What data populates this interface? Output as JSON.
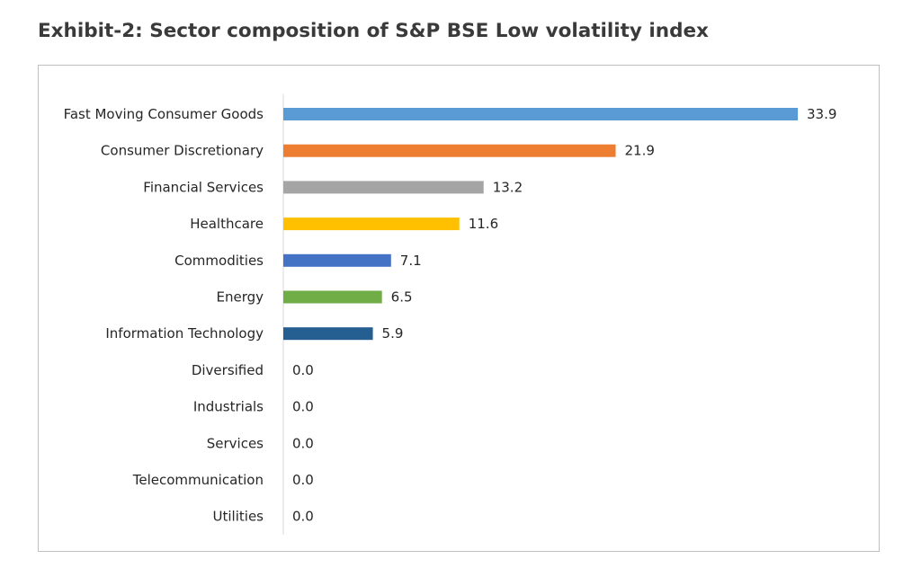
{
  "title": "Exhibit-2: Sector composition of S&P BSE Low volatility index",
  "chart_data": {
    "type": "bar",
    "orientation": "horizontal",
    "title": "",
    "xlabel": "",
    "ylabel": "",
    "categories": [
      "Fast Moving Consumer Goods",
      "Consumer Discretionary",
      "Financial Services",
      "Healthcare",
      "Commodities",
      "Energy",
      "Information Technology",
      "Diversified",
      "Industrials",
      "Services",
      "Telecommunication",
      "Utilities"
    ],
    "values": [
      33.9,
      21.9,
      13.2,
      11.6,
      7.1,
      6.5,
      5.9,
      0.0,
      0.0,
      0.0,
      0.0,
      0.0
    ],
    "value_labels": [
      "33.9",
      "21.9",
      "13.2",
      "11.6",
      "7.1",
      "6.5",
      "5.9",
      "0.0",
      "0.0",
      "0.0",
      "0.0",
      "0.0"
    ],
    "colors": [
      "#5b9bd5",
      "#ed7d31",
      "#a5a5a5",
      "#ffc000",
      "#4472c4",
      "#70ad47",
      "#255e91",
      "#5b9bd5",
      "#5b9bd5",
      "#5b9bd5",
      "#5b9bd5",
      "#5b9bd5"
    ],
    "xlim": [
      0,
      33.9
    ],
    "grid": false,
    "legend": "none"
  }
}
